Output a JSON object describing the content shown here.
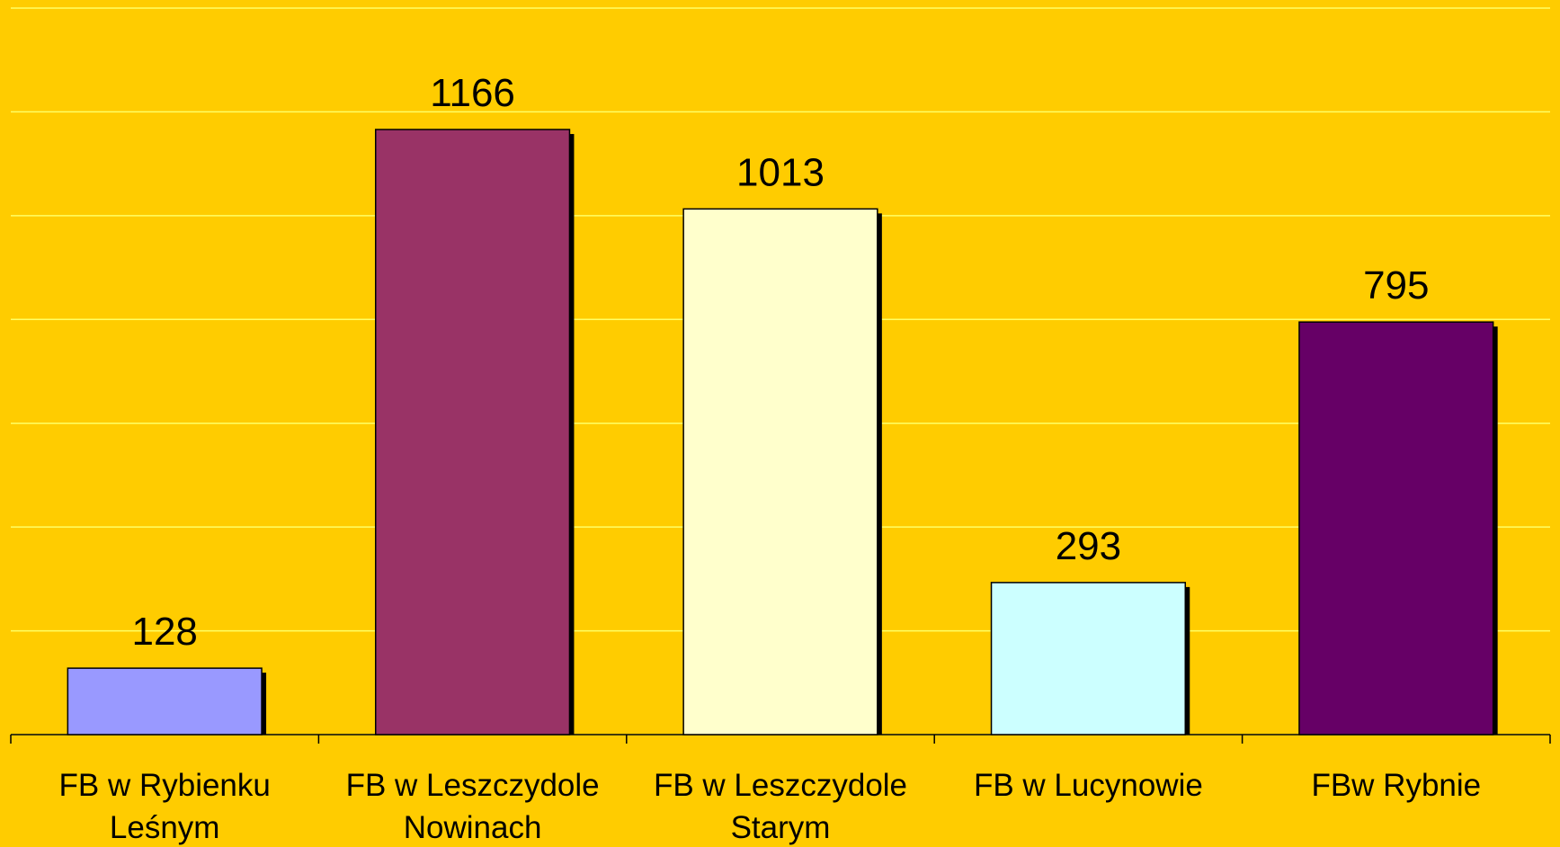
{
  "chart_data": {
    "type": "bar",
    "categories": [
      [
        "FB w Rybienku",
        "Leśnym"
      ],
      [
        "FB w Leszczydole",
        "Nowinach"
      ],
      [
        "FB w Leszczydole",
        "Starym"
      ],
      [
        "FB w Lucynowie"
      ],
      [
        "FBw Rybnie"
      ]
    ],
    "values": [
      128,
      1166,
      1013,
      293,
      795
    ],
    "colors": [
      "#9999ff",
      "#993366",
      "#ffffcc",
      "#ccffff",
      "#660066"
    ],
    "ylim": [
      0,
      1400
    ],
    "yticks": [
      0,
      200,
      400,
      600,
      800,
      1000,
      1200,
      1400
    ],
    "grid": true
  }
}
